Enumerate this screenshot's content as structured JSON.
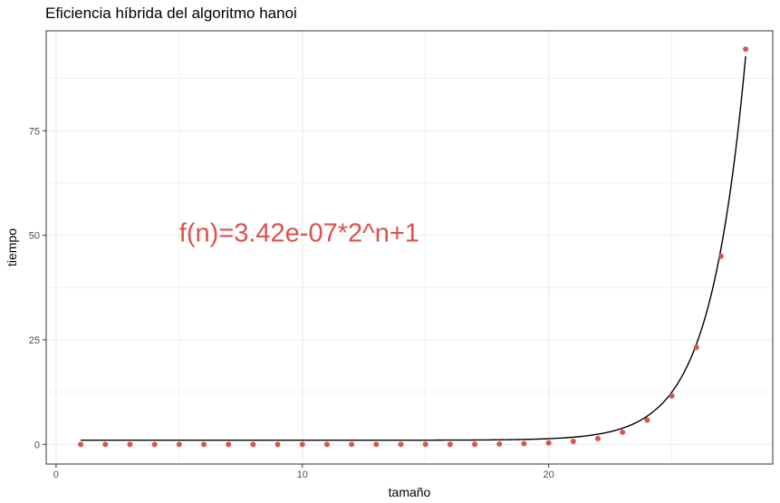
{
  "chart_data": {
    "type": "scatter",
    "title": "Eficiencia híbrida del algoritmo hanoi",
    "xlabel": "tamaño",
    "ylabel": "tiempo",
    "xlim": [
      -0.4,
      29.1
    ],
    "ylim": [
      -4.7,
      98.9
    ],
    "x_ticks": [
      0,
      10,
      20
    ],
    "x_tick_labels": [
      "0",
      "10",
      "20"
    ],
    "y_ticks": [
      0,
      25,
      50,
      75
    ],
    "y_tick_labels": [
      "0",
      "25",
      "50",
      "75"
    ],
    "grid": true,
    "legend": "none",
    "series": [
      {
        "kind": "points",
        "color": "#d9534f",
        "x": [
          1,
          2,
          3,
          4,
          5,
          6,
          7,
          8,
          9,
          10,
          11,
          12,
          13,
          14,
          15,
          16,
          17,
          18,
          19,
          20,
          21,
          22,
          23,
          24,
          25,
          26,
          27,
          28
        ],
        "y": [
          0,
          0,
          0,
          0,
          0,
          0,
          0,
          0,
          0,
          0,
          0,
          0,
          0,
          0,
          0.01,
          0.02,
          0.05,
          0.09,
          0.18,
          0.36,
          0.72,
          1.4,
          2.9,
          5.8,
          11.6,
          23.2,
          45,
          94.5
        ]
      },
      {
        "kind": "fit-line",
        "color": "#000000",
        "formula": {
          "coef": 3.42e-07,
          "base": 2,
          "intercept": 1
        },
        "x_range": [
          1,
          28
        ]
      }
    ],
    "annotations": [
      {
        "text": "f(n)=3.42e-07*2^n+1",
        "x": 5,
        "y": 48.5,
        "color": "#d9534f"
      }
    ]
  }
}
